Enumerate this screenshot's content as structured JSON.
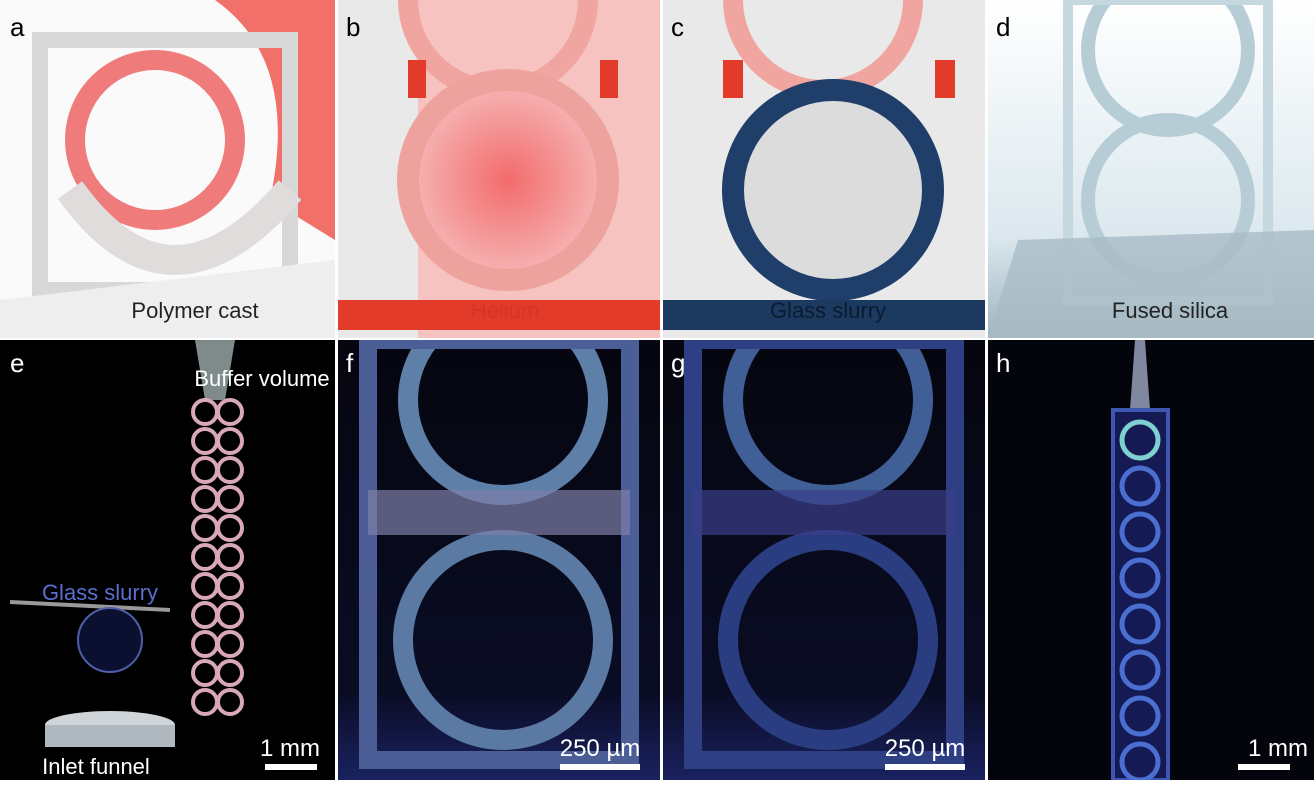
{
  "panels": [
    {
      "label": "a",
      "caption": "Polymer cast"
    },
    {
      "label": "b",
      "caption": "Helium"
    },
    {
      "label": "c",
      "caption": "Glass slurry"
    },
    {
      "label": "d",
      "caption": "Fused silica"
    },
    {
      "label": "e",
      "annotations": [
        "Buffer volume",
        "Glass slurry",
        "Inlet funnel"
      ],
      "scale_bar": "1 mm"
    },
    {
      "label": "f",
      "scale_bar": "250 µm"
    },
    {
      "label": "g",
      "scale_bar": "250 µm"
    },
    {
      "label": "h",
      "scale_bar": "1 mm"
    }
  ]
}
